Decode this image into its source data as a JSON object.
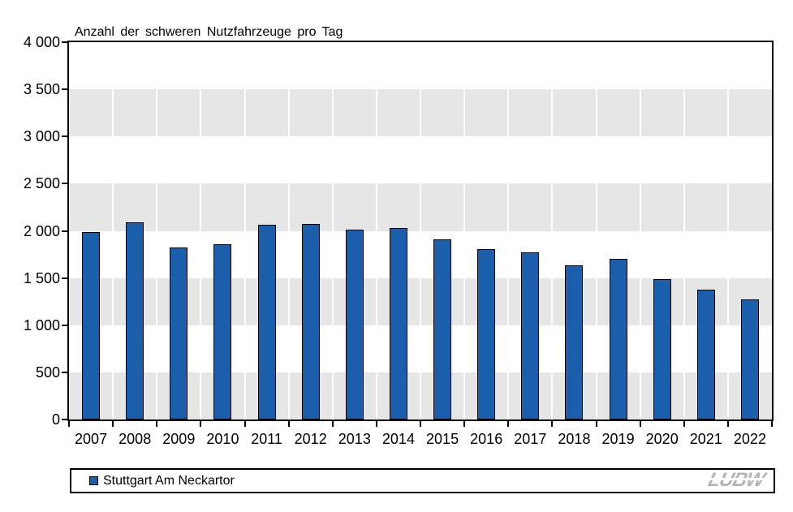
{
  "chart_data": {
    "type": "bar",
    "title": "Anzahl der schweren Nutzfahrzeuge pro Tag",
    "categories": [
      "2007",
      "2008",
      "2009",
      "2010",
      "2011",
      "2012",
      "2013",
      "2014",
      "2015",
      "2016",
      "2017",
      "2018",
      "2019",
      "2020",
      "2021",
      "2022"
    ],
    "series": [
      {
        "name": "Stuttgart Am Neckartor",
        "values": [
          1990,
          2090,
          1820,
          1855,
          2065,
          2075,
          2015,
          2030,
          1910,
          1810,
          1775,
          1635,
          1705,
          1490,
          1380,
          1275
        ]
      }
    ],
    "xlabel": "",
    "ylabel": "",
    "ylim": [
      0,
      4000
    ],
    "ytick_step": 500,
    "ytick_labels": [
      "0",
      "500",
      "1 000",
      "1 500",
      "2 000",
      "2 500",
      "3 000",
      "3 500",
      "4 000"
    ],
    "grid": "alternating horizontal bands, gray starting at 0, white vertical separators between categories",
    "legend_position": "bottom",
    "colors": {
      "bar": "#1B5EAC",
      "bar_border": "#000000",
      "band": "#E6E6E6",
      "logo": "#B4B4B4",
      "text": "#000000"
    }
  },
  "logo": {
    "text": "LUBW"
  }
}
